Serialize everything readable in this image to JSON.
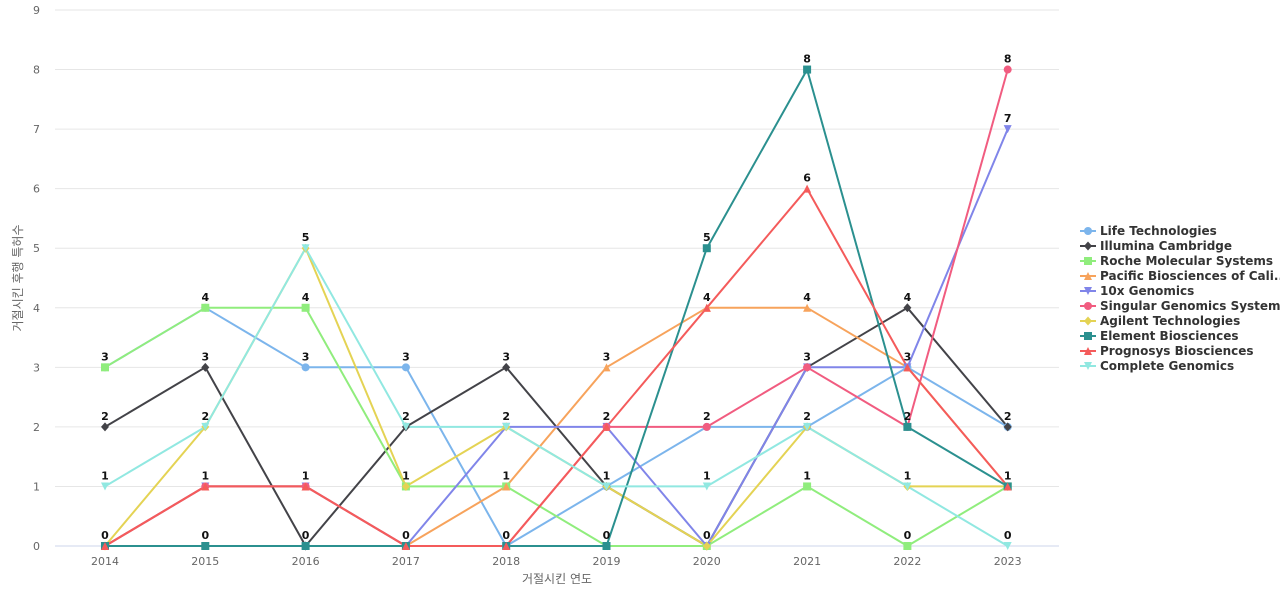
{
  "chart_data": {
    "type": "line",
    "title": "",
    "xlabel": "거절시킨 연도",
    "ylabel": "거절시킨 후행 특허수",
    "ylim": [
      0,
      9
    ],
    "yticks": [
      0,
      1,
      2,
      3,
      4,
      5,
      6,
      7,
      8,
      9
    ],
    "grid": true,
    "legend_position": "right",
    "x": [
      "2014",
      "2015",
      "2016",
      "2017",
      "2018",
      "2019",
      "2020",
      "2021",
      "2022",
      "2023"
    ],
    "series": [
      {
        "name": "Life Technologies",
        "legend_label": "Life Technologies",
        "color": "#7cb5ec",
        "marker": "circle",
        "values": [
          3,
          4,
          3,
          3,
          0,
          1,
          2,
          2,
          3,
          2
        ]
      },
      {
        "name": "Illumina Cambridge",
        "legend_label": "Illumina Cambridge",
        "color": "#434348",
        "marker": "diamond",
        "values": [
          2,
          3,
          0,
          2,
          3,
          1,
          0,
          3,
          4,
          2
        ]
      },
      {
        "name": "Roche Molecular Systems",
        "legend_label": "Roche Molecular Systems",
        "color": "#90ed7d",
        "marker": "square",
        "values": [
          3,
          4,
          4,
          1,
          1,
          0,
          0,
          1,
          0,
          1
        ]
      },
      {
        "name": "Pacific Biosciences of Cali...",
        "legend_label": "Pacific Biosciences of Cali...",
        "color": "#f7a35c",
        "marker": "triangle",
        "values": [
          0,
          1,
          1,
          0,
          1,
          3,
          4,
          4,
          3,
          1
        ]
      },
      {
        "name": "10x Genomics",
        "legend_label": "10x Genomics",
        "color": "#8085e9",
        "marker": "triangle-down",
        "values": [
          0,
          1,
          1,
          0,
          2,
          2,
          0,
          3,
          3,
          7
        ]
      },
      {
        "name": "Singular Genomics Systems",
        "legend_label": "Singular Genomics Systems",
        "color": "#f15c80",
        "marker": "circle",
        "values": [
          0,
          1,
          1,
          0,
          0,
          2,
          2,
          3,
          2,
          8
        ]
      },
      {
        "name": "Agilent Technologies",
        "legend_label": "Agilent Technologies",
        "color": "#e4d354",
        "marker": "diamond",
        "values": [
          0,
          2,
          5,
          1,
          2,
          1,
          0,
          2,
          1,
          1
        ]
      },
      {
        "name": "Element Biosciences",
        "legend_label": "Element Biosciences",
        "color": "#2b908f",
        "marker": "square",
        "values": [
          0,
          0,
          0,
          0,
          0,
          0,
          5,
          8,
          2,
          1
        ]
      },
      {
        "name": "Prognosys Biosciences",
        "legend_label": "Prognosys Biosciences",
        "color": "#f45b5b",
        "marker": "triangle",
        "values": [
          0,
          1,
          1,
          0,
          0,
          2,
          4,
          6,
          3,
          1
        ]
      },
      {
        "name": "Complete Genomics",
        "legend_label": "Complete Genomics",
        "color": "#91e8e1",
        "marker": "triangle-down",
        "values": [
          1,
          2,
          5,
          2,
          2,
          1,
          1,
          2,
          1,
          0
        ]
      }
    ],
    "data_labels": [
      {
        "x": "2014",
        "value": 3
      },
      {
        "x": "2014",
        "value": 2
      },
      {
        "x": "2014",
        "value": 1
      },
      {
        "x": "2014",
        "value": 0
      },
      {
        "x": "2015",
        "value": 4
      },
      {
        "x": "2015",
        "value": 3
      },
      {
        "x": "2015",
        "value": 2
      },
      {
        "x": "2015",
        "value": 1
      },
      {
        "x": "2015",
        "value": 0
      },
      {
        "x": "2016",
        "value": 5
      },
      {
        "x": "2016",
        "value": 4
      },
      {
        "x": "2016",
        "value": 3
      },
      {
        "x": "2016",
        "value": 1
      },
      {
        "x": "2016",
        "value": 0
      },
      {
        "x": "2017",
        "value": 3
      },
      {
        "x": "2017",
        "value": 2
      },
      {
        "x": "2017",
        "value": 1
      },
      {
        "x": "2017",
        "value": 0
      },
      {
        "x": "2018",
        "value": 3
      },
      {
        "x": "2018",
        "value": 2
      },
      {
        "x": "2018",
        "value": 1
      },
      {
        "x": "2018",
        "value": 0
      },
      {
        "x": "2019",
        "value": 3
      },
      {
        "x": "2019",
        "value": 2
      },
      {
        "x": "2019",
        "value": 1
      },
      {
        "x": "2019",
        "value": 0
      },
      {
        "x": "2020",
        "value": 5
      },
      {
        "x": "2020",
        "value": 4
      },
      {
        "x": "2020",
        "value": 2
      },
      {
        "x": "2020",
        "value": 1
      },
      {
        "x": "2020",
        "value": 0
      },
      {
        "x": "2021",
        "value": 8
      },
      {
        "x": "2021",
        "value": 6
      },
      {
        "x": "2021",
        "value": 4
      },
      {
        "x": "2021",
        "value": 3
      },
      {
        "x": "2021",
        "value": 2
      },
      {
        "x": "2021",
        "value": 1
      },
      {
        "x": "2022",
        "value": 4
      },
      {
        "x": "2022",
        "value": 3
      },
      {
        "x": "2022",
        "value": 2
      },
      {
        "x": "2022",
        "value": 1
      },
      {
        "x": "2022",
        "value": 0
      },
      {
        "x": "2023",
        "value": 8
      },
      {
        "x": "2023",
        "value": 7
      },
      {
        "x": "2023",
        "value": 2
      },
      {
        "x": "2023",
        "value": 1
      },
      {
        "x": "2023",
        "value": 0
      }
    ]
  }
}
